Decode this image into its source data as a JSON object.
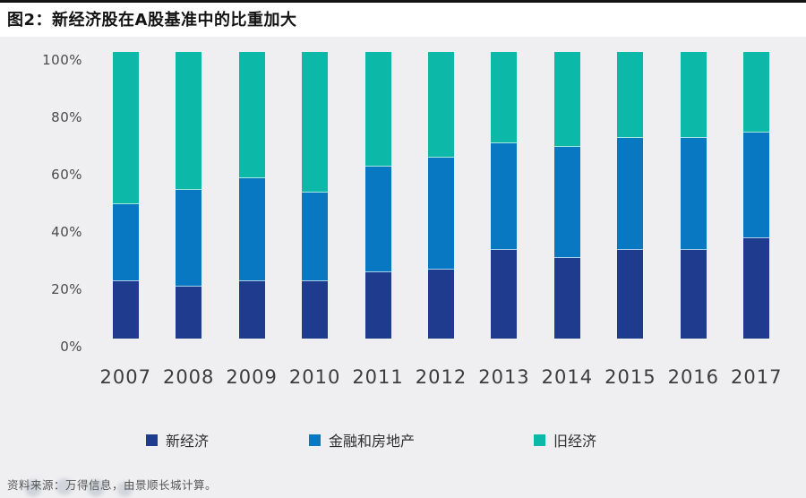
{
  "header": {
    "title": "图2：新经济股在A股基准中的比重加大"
  },
  "chart_data": {
    "type": "bar",
    "stacked": true,
    "title": "新经济股在A股基准中的比重加大",
    "categories": [
      "2007",
      "2008",
      "2009",
      "2010",
      "2011",
      "2012",
      "2013",
      "2014",
      "2015",
      "2016",
      "2017"
    ],
    "series": [
      {
        "name": "新经济",
        "color": "#1f3b8d",
        "values": [
          20,
          18,
          20,
          20,
          23,
          24,
          31,
          28,
          31,
          31,
          35
        ]
      },
      {
        "name": "金融和房地产",
        "color": "#0978c2",
        "values": [
          27,
          34,
          36,
          31,
          37,
          39,
          37,
          39,
          39,
          39,
          37
        ]
      },
      {
        "name": "旧经济",
        "color": "#0cb8a8",
        "values": [
          53,
          48,
          44,
          49,
          40,
          37,
          32,
          33,
          30,
          30,
          28
        ]
      }
    ],
    "y_ticks": [
      "0%",
      "20%",
      "40%",
      "60%",
      "80%",
      "100%"
    ],
    "ylim": [
      0,
      100
    ],
    "unit": "percent",
    "grid": false,
    "legend_position": "bottom"
  },
  "footer": {
    "source_text": "资料来源：万得信息，由景顺长城计算。"
  }
}
